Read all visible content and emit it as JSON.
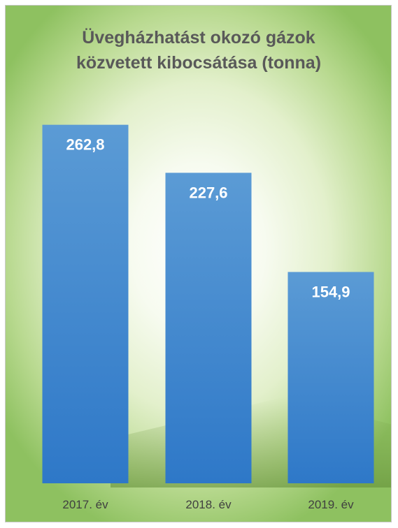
{
  "chart_data": {
    "type": "bar",
    "title_lines": [
      "Üvegházhatást okozó gázok",
      "közvetett kibocsátása (tonna)"
    ],
    "categories": [
      "2017. év",
      "2018. év",
      "2019. év"
    ],
    "values": [
      262.8,
      227.6,
      154.9
    ],
    "value_labels": [
      "262,8",
      "227,6",
      "154,9"
    ],
    "xlabel": "",
    "ylabel": "",
    "ylim": [
      0,
      300
    ],
    "grid": false,
    "legend": "none",
    "colors": {
      "bar_top": "#5b9bd5",
      "bar_bottom": "#2e78c8",
      "background_edge": "#8ec160",
      "background_center": "#ffffff",
      "title": "#595959",
      "data_label": "#ffffff",
      "tick_label": "#404040"
    }
  }
}
